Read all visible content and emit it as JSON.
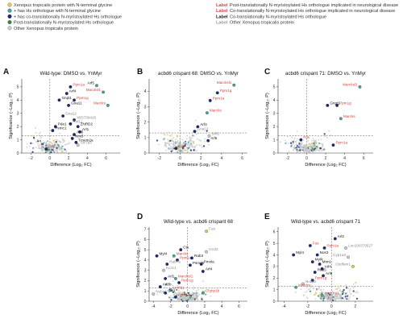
{
  "legend": {
    "left": [
      {
        "text": "Xenopus tropicalis protein with N-terminal glycine",
        "color": "#e8c84a",
        "shape": "circle"
      },
      {
        "text": "+ has Hs orthologue with N-terminal glycine",
        "color": "#4aa39a",
        "shape": "circle"
      },
      {
        "text": "+ has co-translationally N-myristoylated Hs orthologue",
        "color": "#1a2a6c",
        "shape": "circle"
      },
      {
        "text": "Post-translationally N-myristoylated Hs orthologue",
        "color": "#2d8a4e",
        "shape": "circle"
      },
      {
        "text": "Other Xenopus tropicalis protein",
        "color": "#cccccc",
        "shape": "circle"
      }
    ],
    "right": [
      {
        "swatch": "Label",
        "swatch_color": "#d0453a",
        "text": "Post-translationally N-myristoylated Hs orthologue implicated in neurological disease"
      },
      {
        "swatch": "Label",
        "swatch_color": "#d0453a",
        "text": "Co-translationally N-myristoylated Hs orthologue implicated in neurological disease"
      },
      {
        "swatch": "Label",
        "swatch_color": "#111111",
        "text": "Co-translationally N-myristoylated Hs orthologue"
      },
      {
        "swatch": "Label",
        "swatch_color": "#999999",
        "text": "Other Xenopus tropicalis protein"
      }
    ]
  },
  "colors": {
    "yellow": "#e8c84a",
    "teal": "#4aa39a",
    "navy": "#1a2a6c",
    "green": "#2d8a4e",
    "grey": "#c8c8c8",
    "red_label": "#d0453a",
    "dark_label": "#111111"
  },
  "chart_data": [
    {
      "letter": "A",
      "type": "scatter",
      "title": "Wild-type: DMSO vs. YnMyr",
      "xlabel": "Difference (Log₂ FC)",
      "ylabel": "Significance (−Log₁₀ P)",
      "xlim": [
        -3,
        7.5
      ],
      "ylim": [
        0,
        5.6
      ],
      "xticks": [
        -2,
        0,
        2,
        4,
        6
      ],
      "yticks": [
        0,
        1,
        2,
        3,
        4,
        5
      ],
      "threshold_x": 0,
      "threshold_y": 1.3,
      "labeled": [
        {
          "name": "Arf5",
          "x": 5.0,
          "y": 5.1,
          "color": "teal",
          "lc": "dark"
        },
        {
          "name": "Marcksl1",
          "x": 5.7,
          "y": 4.6,
          "color": "teal",
          "lc": "red"
        },
        {
          "name": "Ppm1a",
          "x": 2.2,
          "y": 5.0,
          "color": "navy",
          "lc": "red"
        },
        {
          "name": "Arf4",
          "x": 1.8,
          "y": 4.5,
          "color": "navy",
          "lc": "dark"
        },
        {
          "name": "Gnpt1",
          "x": 1.0,
          "y": 4.0,
          "color": "navy",
          "lc": "dark"
        },
        {
          "name": "Ppm1g",
          "x": 2.6,
          "y": 4.0,
          "color": "navy",
          "lc": "red"
        },
        {
          "name": "Marcks",
          "x": 6.2,
          "y": 3.6,
          "color": "teal",
          "lc": "red"
        },
        {
          "name": "Gna11",
          "x": 2.0,
          "y": 3.6,
          "color": "navy",
          "lc": "dark"
        },
        {
          "name": "Gna12",
          "x": 1.4,
          "y": 2.8,
          "color": "navy",
          "lc": "grey"
        },
        {
          "name": "XB5739426",
          "x": 2.6,
          "y": 2.5,
          "color": "navy",
          "lc": "grey"
        },
        {
          "name": "Rnf11",
          "x": 2.2,
          "y": 2.2,
          "color": "navy",
          "lc": "grey"
        },
        {
          "name": "Pde1",
          "x": 0.6,
          "y": 2.0,
          "color": "navy",
          "lc": "dark"
        },
        {
          "name": "Psmc1",
          "x": 0.3,
          "y": 1.7,
          "color": "navy",
          "lc": "dark"
        },
        {
          "name": "ZNRD2",
          "x": 3.0,
          "y": 2.0,
          "color": "navy",
          "lc": "dark"
        },
        {
          "name": "Arl1",
          "x": 3.2,
          "y": 1.6,
          "color": "navy",
          "lc": "dark"
        },
        {
          "name": "Arl8",
          "x": 2.6,
          "y": 1.4,
          "color": "navy",
          "lc": "dark"
        },
        {
          "name": "Nos3",
          "x": 2.4,
          "y": 1.1,
          "color": "navy",
          "lc": "dark"
        },
        {
          "name": "Tmem2a",
          "x": 2.8,
          "y": 0.8,
          "color": "navy",
          "lc": "dark"
        },
        {
          "name": "Slc7a3",
          "x": 3.0,
          "y": 0.6,
          "color": "grey",
          "lc": "grey"
        },
        {
          "name": "Fus",
          "x": -0.4,
          "y": 0.3,
          "color": "navy",
          "lc": "red"
        }
      ]
    },
    {
      "letter": "B",
      "type": "scatter",
      "title": "acbd6 crispant 68: DMSO vs. YnMyr",
      "xlabel": "Difference (Log₂ FC)",
      "ylabel": "Significance (−Log₁₀ P)",
      "xlim": [
        -3,
        6.5
      ],
      "ylim": [
        0,
        4.8
      ],
      "xticks": [
        -2,
        0,
        2,
        4,
        6
      ],
      "yticks": [
        0,
        1,
        2,
        3,
        4
      ],
      "threshold_x": 0,
      "threshold_y": 1.3,
      "labeled": [
        {
          "name": "Marcksl1",
          "x": 5.2,
          "y": 4.4,
          "color": "teal",
          "lc": "red"
        },
        {
          "name": "Ppm1g",
          "x": 3.6,
          "y": 3.9,
          "color": "navy",
          "lc": "red"
        },
        {
          "name": "Ppm1a",
          "x": 2.9,
          "y": 3.4,
          "color": "navy",
          "lc": "red"
        },
        {
          "name": "Marcks",
          "x": 2.6,
          "y": 2.6,
          "color": "teal",
          "lc": "red"
        },
        {
          "name": "Arf4",
          "x": 1.7,
          "y": 1.7,
          "color": "navy",
          "lc": "dark"
        },
        {
          "name": "Gna12",
          "x": 1.4,
          "y": 1.4,
          "color": "navy",
          "lc": "grey"
        },
        {
          "name": "Srfl2",
          "x": 2.8,
          "y": 1.1,
          "color": "grey",
          "lc": "grey"
        },
        {
          "name": "Arl5",
          "x": 2.7,
          "y": 0.8,
          "color": "navy",
          "lc": "dark"
        },
        {
          "name": "Fus",
          "x": -0.4,
          "y": 0.3,
          "color": "navy",
          "lc": "red"
        }
      ]
    },
    {
      "letter": "C",
      "type": "scatter",
      "title": "acbd6 crispant 71: DMSO vs. YnMyr",
      "xlabel": "Difference (Log₂ FC)",
      "ylabel": "Significance (−Log₁₀ P)",
      "xlim": [
        -3,
        7
      ],
      "ylim": [
        0,
        5.6
      ],
      "xticks": [
        -2,
        0,
        2,
        4,
        6
      ],
      "yticks": [
        0,
        1,
        2,
        3,
        4,
        5
      ],
      "threshold_x": 0,
      "threshold_y": 1.3,
      "labeled": [
        {
          "name": "Marcksl1",
          "x": 5.6,
          "y": 5.0,
          "color": "teal",
          "lc": "red"
        },
        {
          "name": "Gnpt1",
          "x": 2.2,
          "y": 3.6,
          "color": "navy",
          "lc": "dark"
        },
        {
          "name": "Ppm1g",
          "x": 3.2,
          "y": 3.6,
          "color": "navy",
          "lc": "red"
        },
        {
          "name": "Marcks",
          "x": 3.6,
          "y": 2.6,
          "color": "teal",
          "lc": "red"
        },
        {
          "name": "Fus",
          "x": -0.6,
          "y": 1.0,
          "color": "navy",
          "lc": "red"
        },
        {
          "name": "Ppm1a",
          "x": 2.8,
          "y": 0.6,
          "color": "navy",
          "lc": "red"
        }
      ]
    },
    {
      "letter": "D",
      "type": "scatter",
      "title": "Wild-type vs. acbd6 crispant 68",
      "xlabel": "Difference (Log₂ FC)",
      "ylabel": "Significance (−Log₁₀ P)",
      "xlim": [
        -4.5,
        7
      ],
      "ylim": [
        0,
        7.2
      ],
      "xticks": [
        -4,
        -2,
        0,
        2,
        4,
        6
      ],
      "yticks": [
        0,
        1,
        2,
        3,
        4,
        5,
        6,
        7
      ],
      "threshold_x": 0,
      "threshold_y": 1.3,
      "labeled": [
        {
          "name": "Fus",
          "x": 2.2,
          "y": 6.8,
          "color": "yellow",
          "lc": "grey"
        },
        {
          "name": "Cts",
          "x": -0.8,
          "y": 5.0,
          "color": "navy",
          "lc": "dark"
        },
        {
          "name": "Myl4",
          "x": -3.6,
          "y": 4.4,
          "color": "navy",
          "lc": "dark"
        },
        {
          "name": "Marcks",
          "x": -1.6,
          "y": 4.4,
          "color": "teal",
          "lc": "red"
        },
        {
          "name": "Ppm1a",
          "x": -1.2,
          "y": 4.0,
          "color": "navy",
          "lc": "red"
        },
        {
          "name": "Rab3",
          "x": 0.5,
          "y": 4.2,
          "color": "navy",
          "lc": "dark"
        },
        {
          "name": "Cscl2",
          "x": 2.2,
          "y": 4.8,
          "color": "grey",
          "lc": "grey"
        },
        {
          "name": "Rab7a",
          "x": -2.4,
          "y": 3.6,
          "color": "navy",
          "lc": "grey"
        },
        {
          "name": "Psmd6",
          "x": 0.3,
          "y": 3.5,
          "color": "navy",
          "lc": "dark"
        },
        {
          "name": "Pmnla",
          "x": 1.6,
          "y": 3.6,
          "color": "navy",
          "lc": "dark"
        },
        {
          "name": "Kcnc1",
          "x": -2.8,
          "y": 3.0,
          "color": "grey",
          "lc": "grey"
        },
        {
          "name": "Arf4",
          "x": 1.8,
          "y": 2.9,
          "color": "navy",
          "lc": "dark"
        },
        {
          "name": "Marcksl1",
          "x": -1.4,
          "y": 2.2,
          "color": "teal",
          "lc": "red"
        },
        {
          "name": "Arl1",
          "x": -2.6,
          "y": 2.2,
          "color": "navy",
          "lc": "dark"
        },
        {
          "name": "Ppm1g",
          "x": -1.0,
          "y": 1.8,
          "color": "navy",
          "lc": "red"
        },
        {
          "name": "Arl8b",
          "x": -3.2,
          "y": 1.4,
          "color": "navy",
          "lc": "dark"
        },
        {
          "name": "Lmnb1",
          "x": -2.0,
          "y": 1.1,
          "color": "teal",
          "lc": "red"
        },
        {
          "name": "Nubp2",
          "x": -4.0,
          "y": 0.7,
          "color": "grey",
          "lc": "grey"
        },
        {
          "name": "Gnl1",
          "x": -2.6,
          "y": 0.8,
          "color": "navy",
          "lc": "dark"
        },
        {
          "name": "Chmp1b",
          "x": 1.8,
          "y": 0.8,
          "color": "teal",
          "lc": "red"
        },
        {
          "name": "Ppm1a",
          "x": -1.4,
          "y": 0.4,
          "color": "navy",
          "lc": "red"
        }
      ]
    },
    {
      "letter": "E",
      "type": "scatter",
      "title": "Wild-type vs. acbd6 crispant 71",
      "xlabel": "Difference (Log₂ FC)",
      "ylabel": "Significance (−Log₁₀ P)",
      "xlim": [
        -4.5,
        3.5
      ],
      "ylim": [
        0,
        6.4
      ],
      "xticks": [
        -4,
        -2,
        0,
        2
      ],
      "yticks": [
        0,
        1,
        2,
        3,
        4,
        5,
        6
      ],
      "threshold_x": 0,
      "threshold_y": 1.3,
      "labeled": [
        {
          "name": "Arl2",
          "x": 0.3,
          "y": 5.4,
          "color": "navy",
          "lc": "dark"
        },
        {
          "name": "Fus",
          "x": -1.8,
          "y": 4.8,
          "color": "navy",
          "lc": "red"
        },
        {
          "name": "Ppm1a",
          "x": -0.6,
          "y": 4.6,
          "color": "navy",
          "lc": "red"
        },
        {
          "name": "Loc100379527",
          "x": 1.2,
          "y": 4.6,
          "color": "grey",
          "lc": "grey"
        },
        {
          "name": "Myl4",
          "x": -3.2,
          "y": 4.0,
          "color": "navy",
          "lc": "dark"
        },
        {
          "name": "Nos3",
          "x": -1.2,
          "y": 4.0,
          "color": "navy",
          "lc": "dark"
        },
        {
          "name": "Cyp1a3",
          "x": 1.4,
          "y": 3.8,
          "color": "grey",
          "lc": "grey"
        },
        {
          "name": "Myl4",
          "x": -1.6,
          "y": 3.4,
          "color": "navy",
          "lc": "dark"
        },
        {
          "name": "Mtm1",
          "x": -1.0,
          "y": 3.2,
          "color": "navy",
          "lc": "dark"
        },
        {
          "name": "Oxdfam1",
          "x": 1.8,
          "y": 3.0,
          "color": "yellow",
          "lc": "grey"
        },
        {
          "name": "Arf4",
          "x": -0.8,
          "y": 2.8,
          "color": "navy",
          "lc": "dark"
        },
        {
          "name": "Rab5",
          "x": -1.4,
          "y": 2.5,
          "color": "navy",
          "lc": "dark"
        },
        {
          "name": "Arl8",
          "x": -0.7,
          "y": 2.2,
          "color": "navy",
          "lc": "dark"
        },
        {
          "name": "Ppm1g",
          "x": -1.6,
          "y": 1.8,
          "color": "navy",
          "lc": "red"
        },
        {
          "name": "Nubp2",
          "x": -2.4,
          "y": 1.5,
          "color": "grey",
          "lc": "grey"
        },
        {
          "name": "Marcks",
          "x": -3.0,
          "y": 1.2,
          "color": "teal",
          "lc": "red"
        },
        {
          "name": "Marcksl1",
          "x": -0.8,
          "y": 0.5,
          "color": "teal",
          "lc": "red"
        }
      ]
    }
  ]
}
